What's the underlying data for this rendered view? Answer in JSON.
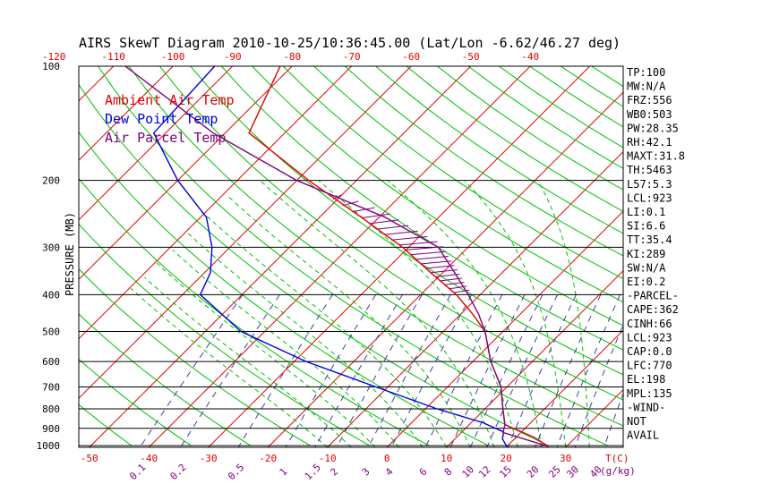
{
  "title": "AIRS SkewT Diagram 2010-10-25/10:36:45.00 (Lat/Lon -6.62/46.27 deg)",
  "colors": {
    "ambient": "#e00000",
    "dewpoint": "#0000e0",
    "parcel": "#800080",
    "isotherm": "#e00000",
    "dry_adiabat": "#00c000",
    "moist_adiabat": "#00c000",
    "mixing_ratio": "#4040a0",
    "text": "#000000"
  },
  "legend": [
    {
      "label": "Ambient Air Temp",
      "color": "#e00000"
    },
    {
      "label": "Dew Point Temp",
      "color": "#0000e0"
    },
    {
      "label": "Air Parcel Temp",
      "color": "#800080"
    }
  ],
  "ylabel": "PRESSURE (MB)",
  "top_axis_ticks": [
    "-120",
    "-110",
    "-100",
    "-90",
    "-80",
    "-70",
    "-60",
    "-50",
    "-40"
  ],
  "bottom_axis_ticks": [
    "-50",
    "-40",
    "-30",
    "-20",
    "-10",
    "0",
    "10",
    "20",
    "30"
  ],
  "bottom_axis_unit": "T(C)",
  "mixing_ratio_labels": [
    "0.1",
    "0.2",
    "0.5",
    "1",
    "1.5",
    "2",
    "3",
    "4",
    "6",
    "8",
    "10",
    "12",
    "15",
    "20",
    "25",
    "30",
    "40"
  ],
  "mixing_ratio_unit": "(g/kg)",
  "pressure_labels": [
    "100",
    "200",
    "300",
    "400",
    "500",
    "600",
    "700",
    "800",
    "900",
    "1000"
  ],
  "indices": [
    "TP:100",
    "MW:N/A",
    "FRZ:556",
    "WB0:503",
    "PW:28.35",
    "RH:42.1",
    "MAXT:31.8",
    "TH:5463",
    "L57:5.3",
    "LCL:923",
    "LI:0.1",
    "SI:6.6",
    "TT:35.4",
    "KI:289",
    "SW:N/A",
    "EI:0.2",
    "-PARCEL-",
    "CAPE:362",
    "CINH:66",
    "LCL:923",
    "CAP:0.0",
    "LFC:770",
    "EL:198",
    "MPL:135",
    "-WIND-",
    "NOT",
    "AVAIL"
  ],
  "chart_data": {
    "type": "line",
    "title": "AIRS SkewT Diagram 2010-10-25/10:36:45.00 (Lat/Lon -6.62/46.27 deg)",
    "ylabel": "PRESSURE (MB)",
    "xlabel": "T(C)",
    "y_scale": "log",
    "ylim": [
      1000,
      100
    ],
    "pressure_levels": [
      100,
      200,
      300,
      400,
      500,
      600,
      700,
      800,
      900,
      1000
    ],
    "series": [
      {
        "name": "Ambient Air Temp",
        "points": [
          {
            "p": 100,
            "t": -82
          },
          {
            "p": 150,
            "t": -76
          },
          {
            "p": 200,
            "t": -58
          },
          {
            "p": 250,
            "t": -43
          },
          {
            "p": 300,
            "t": -31
          },
          {
            "p": 350,
            "t": -22
          },
          {
            "p": 400,
            "t": -14
          },
          {
            "p": 450,
            "t": -8
          },
          {
            "p": 500,
            "t": -3
          },
          {
            "p": 600,
            "t": 3
          },
          {
            "p": 700,
            "t": 9
          },
          {
            "p": 800,
            "t": 13
          },
          {
            "p": 880,
            "t": 16
          },
          {
            "p": 950,
            "t": 23
          },
          {
            "p": 1005,
            "t": 27
          }
        ]
      },
      {
        "name": "Dew Point Temp",
        "points": [
          {
            "p": 100,
            "t": -93
          },
          {
            "p": 150,
            "t": -92
          },
          {
            "p": 200,
            "t": -80
          },
          {
            "p": 250,
            "t": -69
          },
          {
            "p": 300,
            "t": -63
          },
          {
            "p": 350,
            "t": -59
          },
          {
            "p": 400,
            "t": -57
          },
          {
            "p": 500,
            "t": -44
          },
          {
            "p": 600,
            "t": -28
          },
          {
            "p": 700,
            "t": -12
          },
          {
            "p": 800,
            "t": 2
          },
          {
            "p": 870,
            "t": 12
          },
          {
            "p": 920,
            "t": 17
          },
          {
            "p": 960,
            "t": 18
          },
          {
            "p": 1005,
            "t": 20
          }
        ]
      },
      {
        "name": "Air Parcel Temp",
        "points": [
          {
            "p": 100,
            "t": -108
          },
          {
            "p": 150,
            "t": -82
          },
          {
            "p": 200,
            "t": -60
          },
          {
            "p": 250,
            "t": -39
          },
          {
            "p": 300,
            "t": -25
          },
          {
            "p": 350,
            "t": -18
          },
          {
            "p": 400,
            "t": -12
          },
          {
            "p": 450,
            "t": -7
          },
          {
            "p": 500,
            "t": -3
          },
          {
            "p": 600,
            "t": 3
          },
          {
            "p": 700,
            "t": 9
          },
          {
            "p": 800,
            "t": 13
          },
          {
            "p": 880,
            "t": 16
          },
          {
            "p": 923,
            "t": 17
          },
          {
            "p": 1005,
            "t": 27
          }
        ]
      }
    ],
    "isotherms_c": [
      -120,
      -110,
      -100,
      -90,
      -80,
      -70,
      -60,
      -50,
      -40,
      -30,
      -20,
      -10,
      0,
      10,
      20,
      30
    ],
    "mixing_ratios_gkg": [
      0.1,
      0.2,
      0.5,
      1,
      1.5,
      2,
      3,
      4,
      6,
      8,
      10,
      12,
      15,
      20,
      25,
      30,
      40
    ]
  }
}
